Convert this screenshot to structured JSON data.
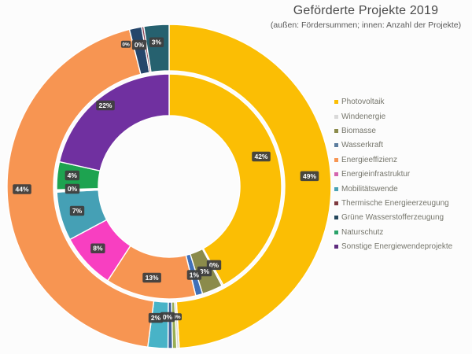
{
  "title": "Geförderte Projekte 2019",
  "subtitle": "(außen: Fördersummen; innen: Anzahl der Projekte)",
  "legend": {
    "items": [
      {
        "label": "Photovoltaik",
        "color": "#FBBE04"
      },
      {
        "label": "Windenergie",
        "color": "#D9D9D9"
      },
      {
        "label": "Biomasse",
        "color": "#8B8B4B"
      },
      {
        "label": "Wasserkraft",
        "color": "#5C7D9E"
      },
      {
        "label": "Energieeffizienz",
        "color": "#F79552"
      },
      {
        "label": "Energieinfrastruktur",
        "color": "#D465AE"
      },
      {
        "label": "Mobilitätswende",
        "color": "#4AA2B5"
      },
      {
        "label": "Thermische Energieerzeugung",
        "color": "#7E3A3F"
      },
      {
        "label": "Grüne Wasserstofferzeugung",
        "color": "#24475C"
      },
      {
        "label": "Naturschutz",
        "color": "#2AA269"
      },
      {
        "label": "Sonstige Energiewendeprojekte",
        "color": "#5E2C7E"
      }
    ]
  },
  "chart_data": {
    "type": "nested_donut",
    "title": "Geförderte Projekte 2019",
    "rings_meaning": {
      "outer": "Fördersummen",
      "inner": "Anzahl der Projekte"
    },
    "unit": "%",
    "categories": [
      "Photovoltaik",
      "Windenergie",
      "Biomasse",
      "Wasserkraft",
      "Energieeffizienz",
      "Energieinfrastruktur",
      "Mobilitätswende",
      "Thermische Energieerzeugung",
      "Grüne Wasserstofferzeugung",
      "Naturschutz",
      "Sonstige Energiewendeprojekte"
    ],
    "series": [
      {
        "name": "Fördersummen (außen)",
        "values": [
          49,
          0,
          0,
          0,
          44,
          0,
          2,
          0,
          3,
          0,
          0
        ]
      },
      {
        "name": "Anzahl der Projekte (innen)",
        "values": [
          42,
          0,
          3,
          1,
          13,
          8,
          7,
          0,
          0,
          4,
          22
        ]
      }
    ],
    "legend_position": "right",
    "render": {
      "center": {
        "x": 215,
        "y": 237
      },
      "label_style": {
        "bg": "#3F3F3F",
        "fg": "#FFFFFF"
      },
      "rings": [
        {
          "id": "outer",
          "r_inner": 147,
          "r_outer": 206,
          "slices": [
            {
              "category": "Photovoltaik",
              "color": "#FBBE04",
              "from": 0,
              "to": 176.4
            },
            {
              "category": "Windenergie",
              "color": "#DCDCD2",
              "from": 176.4,
              "to": 177.3
            },
            {
              "category": "Biomasse",
              "color": "#98AE55",
              "from": 177.3,
              "to": 178.8
            },
            {
              "category": "Wasserkraft",
              "color": "#40639B",
              "from": 178.8,
              "to": 180.4
            },
            {
              "category": "Mobilitätswende",
              "color": "#48B3C7",
              "from": 180.4,
              "to": 187.6
            },
            {
              "category": "Energieeffizienz",
              "color": "#F79552",
              "from": 187.6,
              "to": 345.8
            },
            {
              "category": "Thermische Energieerzeugung",
              "color": "#25466B",
              "from": 345.8,
              "to": 350.2
            },
            {
              "category": "Energieinfrastruktur",
              "color": "#8A4558",
              "from": 350.2,
              "to": 351.0
            },
            {
              "category": "Grüne Wasserstofferzeugung",
              "color": "#26616F",
              "from": 351.0,
              "to": 360
            }
          ],
          "labels": [
            {
              "text": "49%",
              "angle": 85.8,
              "r": 179
            },
            {
              "text": "0%",
              "angle": 176.6,
              "r": 166,
              "mini": true
            },
            {
              "text": "0%",
              "angle": 180.7,
              "r": 166
            },
            {
              "text": "2%",
              "angle": 185.8,
              "r": 168
            },
            {
              "text": "44%",
              "angle": 268.9,
              "r": 187
            },
            {
              "text": "0%",
              "angle": 343.1,
              "r": 189,
              "mini": true
            },
            {
              "text": "0%",
              "angle": 348.1,
              "r": 184
            },
            {
              "text": "3%",
              "angle": 355.0,
              "r": 184
            }
          ]
        },
        {
          "id": "inner",
          "r_inner": 90,
          "r_outer": 143,
          "slices": [
            {
              "category": "Photovoltaik",
              "color": "#FBBE04",
              "from": 0,
              "to": 151.2
            },
            {
              "category": "Windenergie",
              "color": "#DCDCD2",
              "from": 151.2,
              "to": 152.0
            },
            {
              "category": "Biomasse",
              "color": "#8B8B4B",
              "from": 152.0,
              "to": 162.7
            },
            {
              "category": "Wasserkraft",
              "color": "#4070B8",
              "from": 162.7,
              "to": 166.3
            },
            {
              "category": "Energieeffizienz",
              "color": "#F79552",
              "from": 166.3,
              "to": 213.1
            },
            {
              "category": "Energieinfrastruktur",
              "color": "#F83FC1",
              "from": 213.1,
              "to": 241.9
            },
            {
              "category": "Mobilitätswende",
              "color": "#45A0B5",
              "from": 241.9,
              "to": 267.1
            },
            {
              "category": "Thermische Energieerzeugung",
              "color": "#7E3A3F",
              "from": 267.1,
              "to": 267.7
            },
            {
              "category": "Grüne Wasserstofferzeugung",
              "color": "#24475C",
              "from": 267.7,
              "to": 268.3
            },
            {
              "category": "Naturschutz",
              "color": "#1DA350",
              "from": 268.3,
              "to": 282.7
            },
            {
              "category": "Sonstige Energiewendeprojekte",
              "color": "#7030A0",
              "from": 282.7,
              "to": 360
            }
          ],
          "labels": [
            {
              "text": "42%",
              "angle": 72,
              "r": 123
            },
            {
              "text": "0%",
              "angle": 150.3,
              "r": 115
            },
            {
              "text": "3%",
              "angle": 157.4,
              "r": 117
            },
            {
              "text": "1%",
              "angle": 164.2,
              "r": 117
            },
            {
              "text": "13%",
              "angle": 190.7,
              "r": 118
            },
            {
              "text": "8%",
              "angle": 229,
              "r": 120
            },
            {
              "text": "7%",
              "angle": 255.2,
              "r": 121
            },
            {
              "text": "0%",
              "angle": 268.6,
              "r": 123
            },
            {
              "text": "4%",
              "angle": 276.5,
              "r": 124
            },
            {
              "text": "22%",
              "angle": 321.8,
              "r": 131
            }
          ]
        }
      ]
    }
  }
}
